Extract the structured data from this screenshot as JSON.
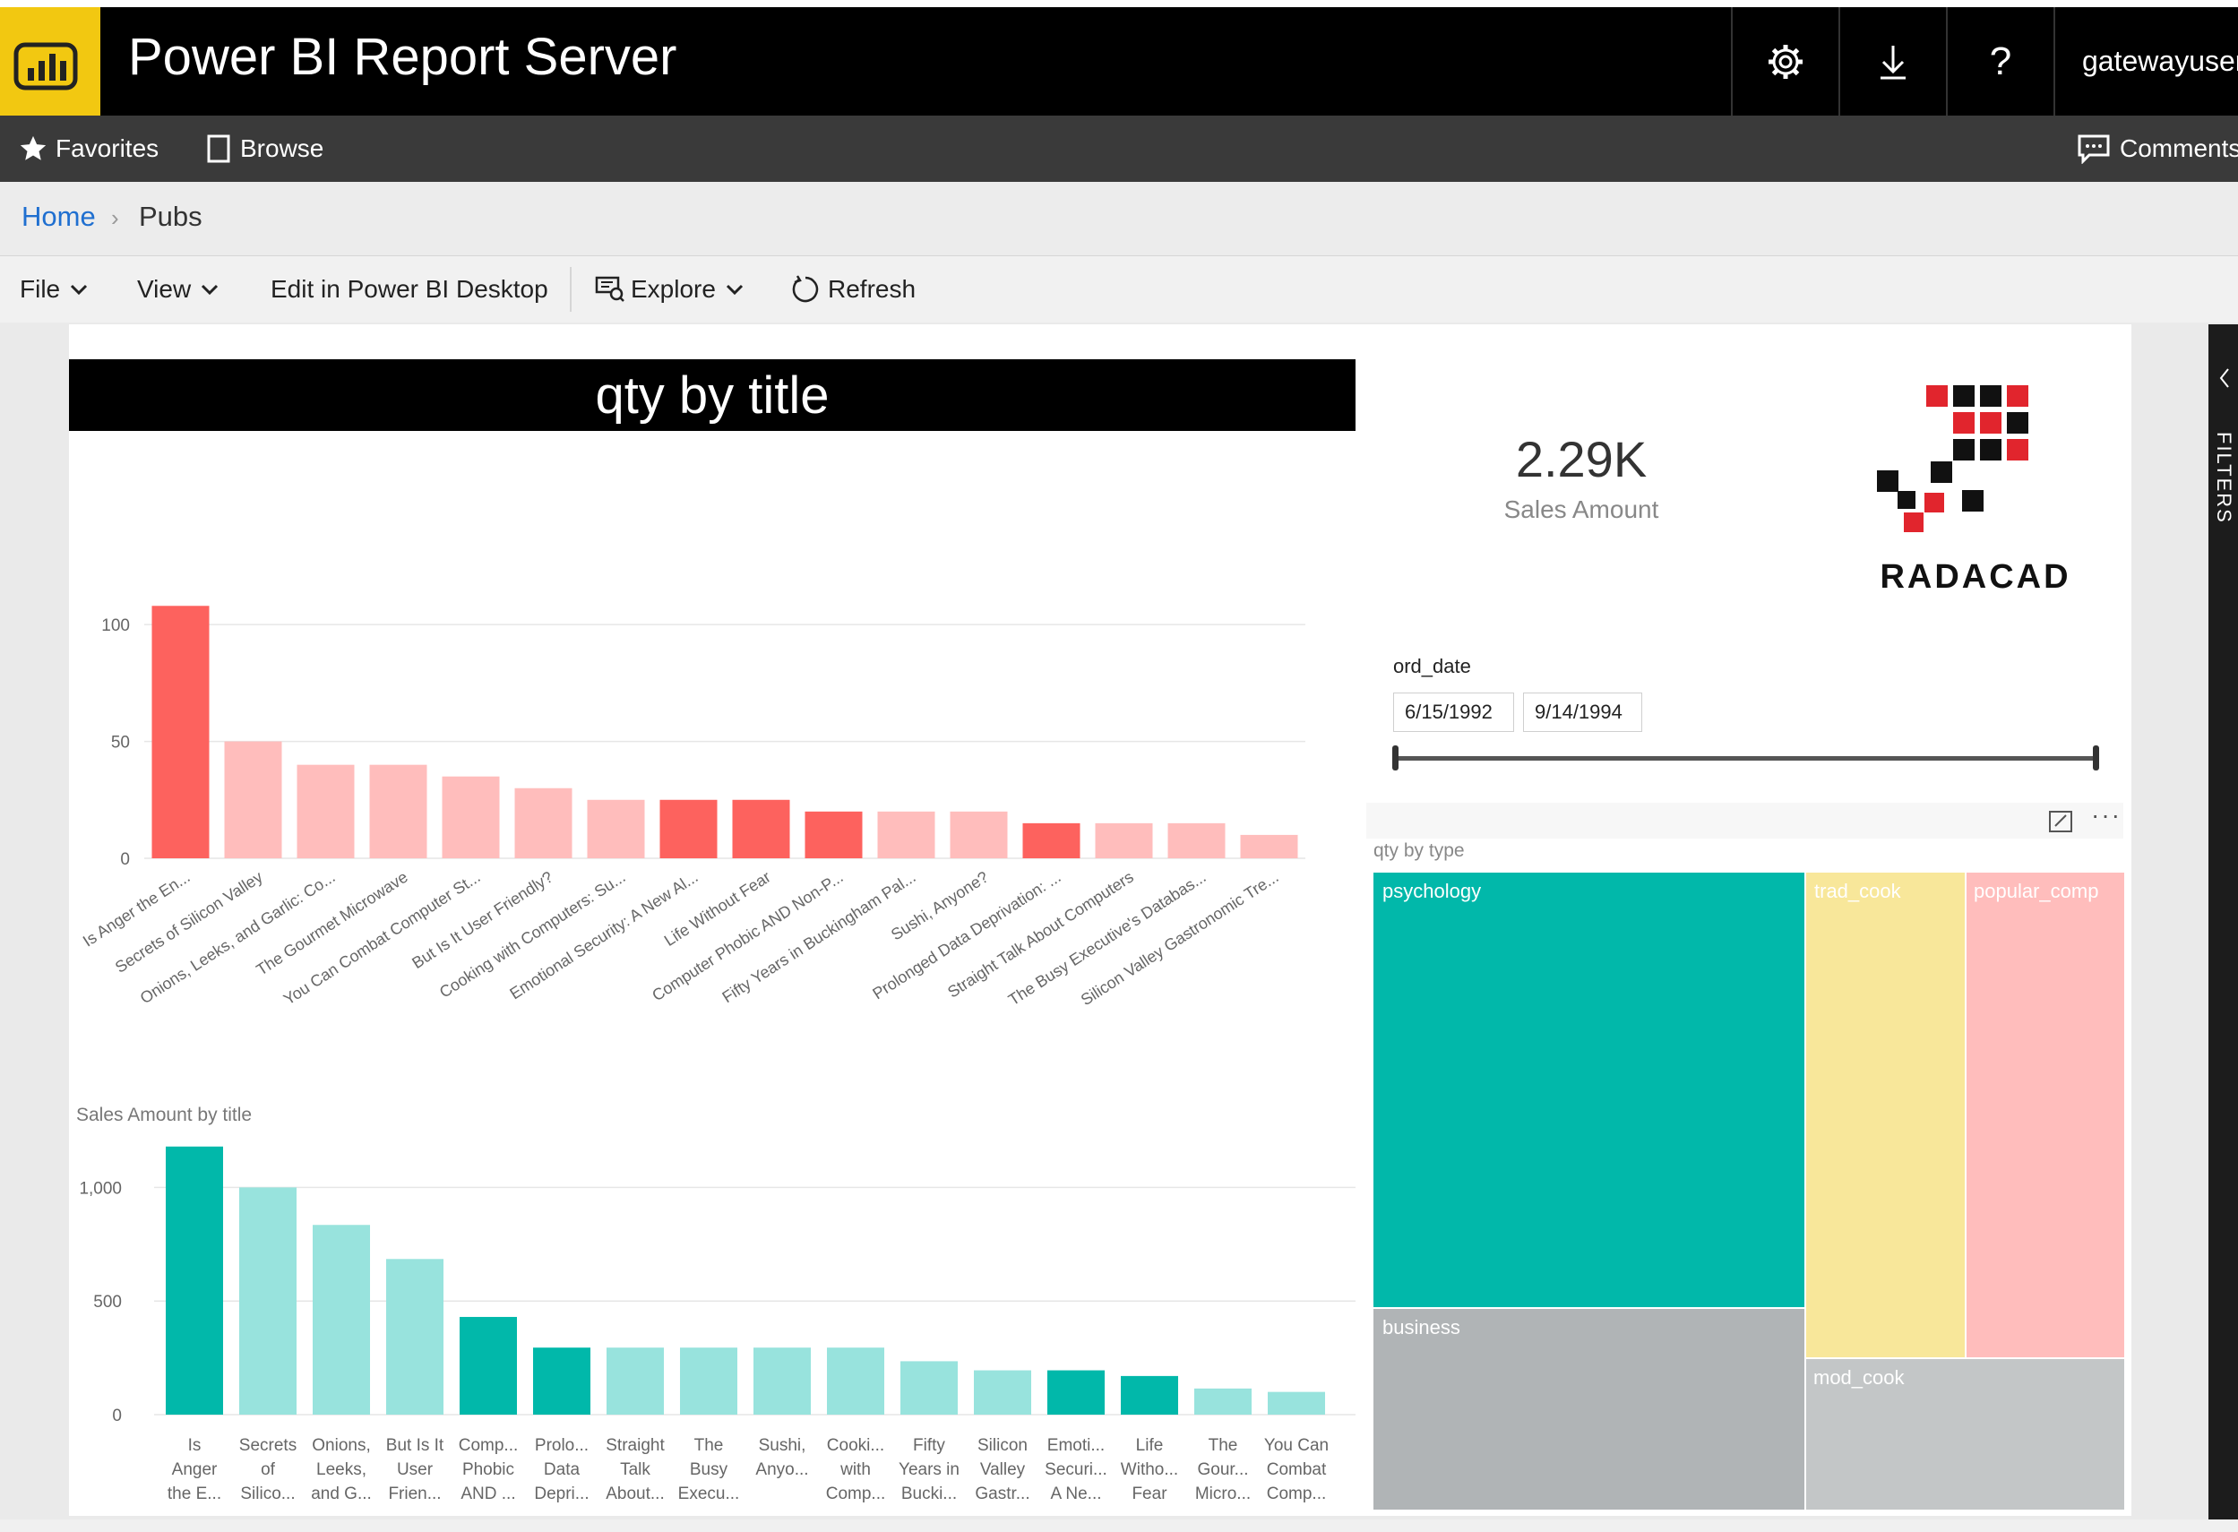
{
  "app": {
    "title": "Power BI Report Server",
    "user": "gatewayuser"
  },
  "topbar": {
    "settings_icon": "gear-icon",
    "download_icon": "download-icon",
    "help_label": "?"
  },
  "nav": {
    "favorites": "Favorites",
    "browse": "Browse",
    "comments": "Comments"
  },
  "breadcrumb": {
    "home": "Home",
    "current": "Pubs"
  },
  "toolbar": {
    "file": "File",
    "view": "View",
    "edit": "Edit in Power BI Desktop",
    "explore": "Explore",
    "refresh": "Refresh"
  },
  "filters_label": "FILTERS",
  "kpi": {
    "value": "2.29K",
    "label": "Sales Amount"
  },
  "logo_text": "RADACAD",
  "slicer": {
    "label": "ord_date",
    "start": "6/15/1992",
    "end": "9/14/1994"
  },
  "colors": {
    "red": "#fd625e",
    "pink": "#ffbdbc",
    "teal": "#01b8aa",
    "teal_light": "#98e3dd",
    "yellow": "#f8e79a",
    "gray": "#b0b4b6"
  },
  "chart_data": [
    {
      "type": "bar",
      "title": "qty by title",
      "categories": [
        "Is Anger the En...",
        "Secrets of Silicon Valley",
        "Onions, Leeks, and Garlic: Co...",
        "The Gourmet Microwave",
        "You Can Combat Computer St...",
        "But Is It User Friendly?",
        "Cooking with Computers: Su...",
        "Emotional Security: A New Al...",
        "Life Without Fear",
        "Computer Phobic AND Non-P...",
        "Fifty Years in Buckingham Pal...",
        "Sushi, Anyone?",
        "Prolonged Data Deprivation: ...",
        "Straight Talk About Computers",
        "The Busy Executive's Databas...",
        "Silicon Valley Gastronomic Tre..."
      ],
      "values": [
        108,
        50,
        40,
        40,
        35,
        30,
        25,
        25,
        25,
        20,
        20,
        20,
        15,
        15,
        15,
        10
      ],
      "highlight": [
        true,
        false,
        false,
        false,
        false,
        false,
        false,
        true,
        true,
        true,
        false,
        false,
        true,
        false,
        false,
        false
      ],
      "yticks": [
        0,
        50,
        100
      ],
      "ylim": [
        0,
        115
      ]
    },
    {
      "type": "bar",
      "title": "Sales Amount by title",
      "categories": [
        [
          "Is",
          "Anger",
          "the E..."
        ],
        [
          "Secrets",
          "of",
          "Silico..."
        ],
        [
          "Onions,",
          "Leeks,",
          "and G..."
        ],
        [
          "But Is It",
          "User",
          "Frien..."
        ],
        [
          "Comp...",
          "Phobic",
          "AND ..."
        ],
        [
          "Prolo...",
          "Data",
          "Depri..."
        ],
        [
          "Straight",
          "Talk",
          "About..."
        ],
        [
          "The",
          "Busy",
          "Execu..."
        ],
        [
          "Sushi,",
          "Anyo..."
        ],
        [
          "Cooki...",
          "with",
          "Comp..."
        ],
        [
          "Fifty",
          "Years in",
          "Bucki..."
        ],
        [
          "Silicon",
          "Valley",
          "Gastr..."
        ],
        [
          "Emoti...",
          "Securi...",
          "A Ne..."
        ],
        [
          "Life",
          "Witho...",
          "Fear"
        ],
        [
          "The",
          "Gour...",
          "Micro..."
        ],
        [
          "You Can",
          "Combat",
          "Comp..."
        ]
      ],
      "values": [
        1180,
        1000,
        835,
        685,
        430,
        295,
        295,
        295,
        295,
        295,
        235,
        195,
        195,
        170,
        115,
        100
      ],
      "highlight": [
        true,
        false,
        false,
        false,
        true,
        true,
        false,
        false,
        false,
        false,
        false,
        false,
        true,
        true,
        false,
        false
      ],
      "yticks": [
        0,
        500,
        1000
      ],
      "ytick_labels": [
        "0",
        "500",
        "1,000"
      ],
      "ylim": [
        0,
        1250
      ]
    },
    {
      "type": "treemap",
      "title": "qty by type",
      "items": [
        {
          "name": "psychology",
          "color": "#01b8aa"
        },
        {
          "name": "business",
          "color": "#b0b4b6"
        },
        {
          "name": "trad_cook",
          "color": "#f8e79a"
        },
        {
          "name": "popular_comp",
          "color": "#ffbdbc"
        },
        {
          "name": "mod_cook",
          "color": "#c3c6c7"
        }
      ]
    }
  ]
}
